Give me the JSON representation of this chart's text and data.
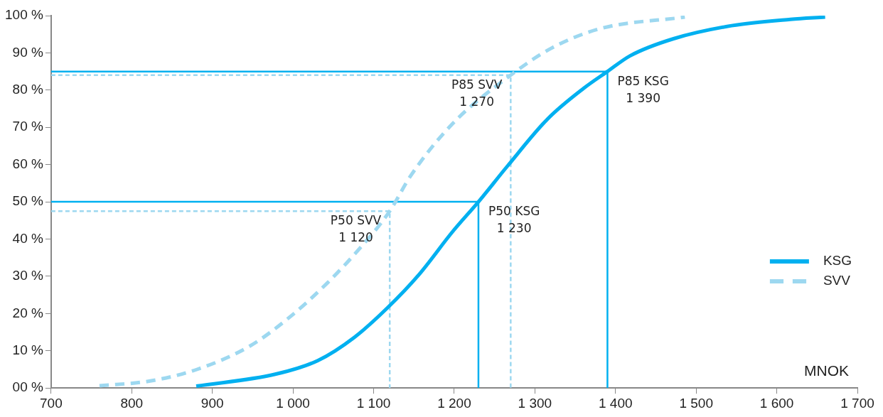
{
  "chart_data": {
    "type": "line",
    "xlabel": "MNOK",
    "xlim": [
      700,
      1700
    ],
    "xticks": [
      700,
      800,
      900,
      {
        "value": 1000,
        "label": "1 000"
      },
      {
        "value": 1100,
        "label": "1 100"
      },
      {
        "value": 1200,
        "label": "1 200"
      },
      {
        "value": 1300,
        "label": "1 300"
      },
      {
        "value": 1400,
        "label": "1 400"
      },
      {
        "value": 1500,
        "label": "1 500"
      },
      {
        "value": 1600,
        "label": "1 600"
      },
      {
        "value": 1700,
        "label": "1 700"
      }
    ],
    "ylim": [
      0,
      100
    ],
    "yticks": [
      {
        "value": 0,
        "label": "00 %"
      },
      {
        "value": 10,
        "label": "10 %"
      },
      {
        "value": 20,
        "label": "20 %"
      },
      {
        "value": 30,
        "label": "30 %"
      },
      {
        "value": 40,
        "label": "40 %"
      },
      {
        "value": 50,
        "label": "50 %"
      },
      {
        "value": 60,
        "label": "60 %"
      },
      {
        "value": 70,
        "label": "70 %"
      },
      {
        "value": 80,
        "label": "80 %"
      },
      {
        "value": 90,
        "label": "90 %"
      },
      {
        "value": 100,
        "label": "100 %"
      }
    ],
    "grid": false,
    "legend": "right",
    "marker": "none",
    "series": [
      {
        "name": "KSG",
        "color": "#00b0f0",
        "line_style": "solid",
        "x": [
          880,
          978,
          1031,
          1076,
          1117,
          1156,
          1198,
          1230,
          1266,
          1316,
          1360,
          1390,
          1418,
          1472,
          1544,
          1617,
          1660
        ],
        "values": [
          0.5,
          3.7,
          7.4,
          13.6,
          21.5,
          30.4,
          42,
          50,
          59.6,
          72.3,
          80.4,
          85,
          89.2,
          93.8,
          97.3,
          99,
          99.6
        ]
      },
      {
        "name": "SVV",
        "color": "#9dd8f0",
        "line_style": "dashed",
        "x": [
          760,
          823,
          881,
          946,
          994,
          1043,
          1082,
          1120,
          1146,
          1198,
          1270,
          1320,
          1381,
          1486
        ],
        "values": [
          0.6,
          1.9,
          5,
          11.2,
          18.7,
          28.3,
          37.3,
          47.5,
          57,
          71,
          84,
          91.2,
          96.5,
          99.6
        ]
      },
      {
        "color": "#00b0f0",
        "line_style": "solid",
        "x": [
          700,
          1390,
          1390
        ],
        "values": [
          85,
          85,
          0
        ]
      },
      {
        "color": "#9dd8f0",
        "line_style": "dashed",
        "x": [
          700,
          1270,
          1270
        ],
        "values": [
          84,
          84,
          0
        ]
      },
      {
        "color": "#00b0f0",
        "line_style": "solid",
        "x": [
          700,
          1230,
          1230
        ],
        "values": [
          50,
          50,
          0
        ]
      },
      {
        "color": "#9dd8f0",
        "line_style": "dashed",
        "x": [
          700,
          1120,
          1120
        ],
        "values": [
          47.5,
          47.5,
          0
        ]
      }
    ],
    "annotations": [
      {
        "text": "P85 SVV\n1 270",
        "x": 1270,
        "y": 84
      },
      {
        "text": "P85 KSG\n1 390",
        "x": 1390,
        "y": 85
      },
      {
        "text": "P50 SVV\n1 120",
        "x": 1120,
        "y": 47.5
      },
      {
        "text": "P50 KSG\n1 230",
        "x": 1230,
        "y": 50
      }
    ]
  }
}
